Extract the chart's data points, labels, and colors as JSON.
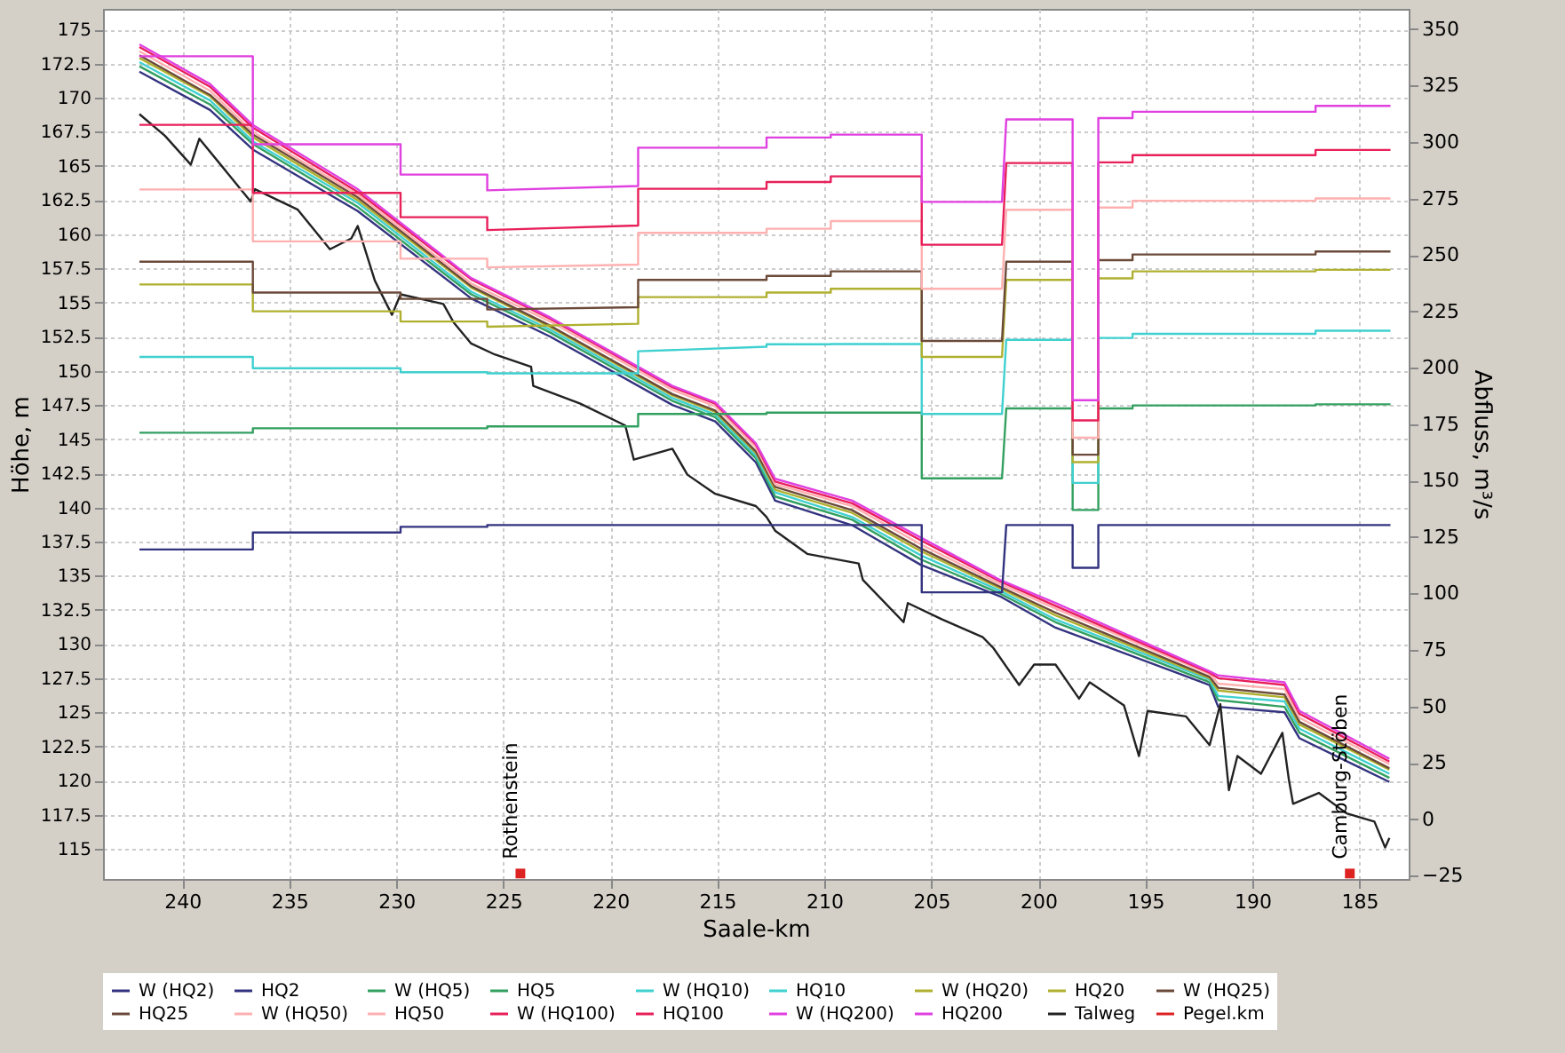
{
  "chart_data": {
    "type": "line",
    "xlabel": "Saale-km",
    "ylabel": "Höhe, m",
    "y2label": "Abfluss, m³/s",
    "xlim": [
      243.7,
      182.7
    ],
    "xticks": [
      240,
      235,
      230,
      225,
      220,
      215,
      210,
      205,
      200,
      195,
      190,
      185
    ],
    "ylim": [
      112.8,
      176.5
    ],
    "yticks": [
      115,
      117.5,
      120,
      122.5,
      125,
      127.5,
      130,
      132.5,
      135,
      137.5,
      140,
      142.5,
      145,
      147.5,
      150,
      152.5,
      155,
      157.5,
      160,
      162.5,
      165,
      167.5,
      170,
      172.5,
      175
    ],
    "y2lim": [
      -26.5,
      359
    ],
    "y2ticks": [
      -25,
      0,
      25,
      50,
      75,
      100,
      125,
      150,
      175,
      200,
      225,
      250,
      275,
      300,
      325,
      350
    ],
    "grid": true,
    "legend": "bottom",
    "annotations": [
      {
        "text": "Rothenstein",
        "x": 224.2,
        "y": 113.2
      },
      {
        "text": "Camburg-Stöben",
        "x": 185.45,
        "y": 113.2
      }
    ],
    "series": [
      {
        "name": "W (HQ2)",
        "color": "#333380",
        "x": [
          242.0,
          238.7,
          236.7,
          231.8,
          226.5,
          222.8,
          217.1,
          215.1,
          213.2,
          212.3,
          208.7,
          205.5,
          201.8,
          199.2,
          192.0,
          191.6,
          188.5,
          187.8,
          183.6
        ],
        "values": [
          171.9,
          169.1,
          166.2,
          161.7,
          155.3,
          152.5,
          147.5,
          146.3,
          143.3,
          140.5,
          138.7,
          135.8,
          133.5,
          131.2,
          127.0,
          125.4,
          125.0,
          123.1,
          119.9
        ]
      },
      {
        "name": "HQ2",
        "color": "#333380",
        "axis": "y2",
        "x": [
          242.0,
          236.7,
          236.7,
          229.8,
          229.8,
          225.75,
          225.75,
          218.7,
          218.7,
          212.7,
          212.7,
          209.7,
          209.7,
          205.45,
          205.45,
          201.7,
          201.5,
          198.4,
          198.4,
          197.2,
          197.2,
          195.6,
          195.6,
          187.05,
          187.05,
          183.55
        ],
        "values": [
          119.5,
          119.5,
          127,
          127,
          129.5,
          129.5,
          130.3,
          130.3,
          130.3,
          130.3,
          130.3,
          130.3,
          130.3,
          130.3,
          100.5,
          100.5,
          130.3,
          130.3,
          111.4,
          111.4,
          130.3,
          130.3,
          130.3,
          130.3,
          130.3,
          130.3
        ]
      },
      {
        "name": "W (HQ5)",
        "color": "#33a060",
        "x": [
          242.0,
          238.7,
          236.7,
          231.8,
          226.5,
          222.8,
          217.1,
          215.1,
          213.2,
          212.3,
          208.7,
          205.5,
          201.8,
          199.2,
          192.0,
          191.6,
          188.5,
          187.8,
          183.6
        ],
        "values": [
          172.3,
          169.5,
          166.6,
          162.0,
          155.6,
          152.8,
          147.8,
          146.6,
          143.6,
          140.8,
          139.1,
          136.2,
          133.7,
          131.6,
          127.2,
          125.9,
          125.4,
          123.5,
          120.2
        ]
      },
      {
        "name": "HQ5",
        "color": "#33a060",
        "axis": "y2",
        "x": [
          242.0,
          236.7,
          236.7,
          229.8,
          229.8,
          225.75,
          225.75,
          218.7,
          218.7,
          212.7,
          212.7,
          209.7,
          209.7,
          205.45,
          205.45,
          201.7,
          201.5,
          198.4,
          198.4,
          197.2,
          197.2,
          195.6,
          195.6,
          187.05,
          187.05,
          183.55
        ],
        "values": [
          171.2,
          171.2,
          173.2,
          173.2,
          173.2,
          173.2,
          174,
          174,
          179.5,
          179.5,
          180.1,
          180.1,
          180.1,
          180.1,
          151,
          151,
          182,
          182,
          137,
          137,
          182,
          182,
          183.3,
          183.3,
          183.8,
          183.8
        ]
      },
      {
        "name": "W (HQ10)",
        "color": "#40d0d0",
        "x": [
          242.0,
          238.7,
          236.7,
          231.8,
          226.5,
          222.8,
          217.1,
          215.1,
          213.2,
          212.3,
          208.7,
          205.5,
          201.8,
          199.2,
          192.0,
          191.6,
          188.5,
          187.8,
          183.6
        ],
        "values": [
          172.6,
          169.8,
          166.8,
          162.3,
          155.8,
          153.0,
          148.0,
          146.8,
          143.8,
          141.1,
          139.3,
          136.5,
          133.9,
          131.8,
          127.4,
          126.2,
          125.8,
          123.8,
          120.5
        ]
      },
      {
        "name": "HQ10",
        "color": "#40d0d0",
        "axis": "y2",
        "x": [
          242.0,
          236.7,
          236.7,
          229.8,
          229.8,
          225.75,
          225.75,
          218.7,
          218.7,
          212.7,
          212.7,
          209.7,
          209.7,
          205.45,
          205.45,
          201.7,
          201.5,
          198.4,
          198.4,
          197.2,
          197.2,
          195.6,
          195.6,
          187.05,
          187.05,
          183.55
        ],
        "values": [
          204.8,
          204.8,
          199.8,
          199.8,
          198,
          198,
          197.5,
          197.5,
          207.3,
          209.3,
          210.4,
          210.4,
          210.5,
          210.5,
          179.5,
          179.5,
          212.4,
          212.4,
          149,
          149,
          213.2,
          213.2,
          215,
          215,
          216.4,
          216.4
        ]
      },
      {
        "name": "W (HQ20)",
        "color": "#b0b030",
        "x": [
          242.0,
          238.7,
          236.7,
          231.8,
          226.5,
          222.8,
          217.1,
          215.1,
          213.2,
          212.3,
          208.7,
          205.5,
          201.8,
          199.2,
          192.0,
          191.6,
          188.5,
          187.8,
          183.6
        ],
        "values": [
          172.9,
          170.1,
          167.1,
          162.5,
          156.1,
          153.2,
          148.2,
          147.0,
          144.0,
          141.3,
          139.6,
          136.8,
          134.1,
          132.1,
          127.5,
          126.6,
          126.1,
          124.1,
          120.8
        ]
      },
      {
        "name": "HQ20",
        "color": "#b0b030",
        "axis": "y2",
        "x": [
          242.0,
          236.7,
          236.7,
          229.8,
          229.8,
          225.75,
          225.75,
          218.7,
          218.7,
          212.7,
          212.7,
          209.7,
          209.7,
          205.45,
          205.45,
          201.7,
          201.5,
          198.4,
          198.4,
          197.2,
          197.2,
          195.6,
          195.6,
          187.05,
          187.05,
          183.55
        ],
        "values": [
          236.9,
          236.9,
          225,
          225,
          220.5,
          220.5,
          218.2,
          219.5,
          231.3,
          231.3,
          233.3,
          233.3,
          235,
          235,
          204.8,
          204.8,
          238.9,
          238.9,
          158.2,
          158.2,
          239.6,
          239.6,
          242.7,
          242.7,
          243.4,
          243.4
        ]
      },
      {
        "name": "W (HQ25)",
        "color": "#6b4a3a",
        "x": [
          242.0,
          238.7,
          236.7,
          231.8,
          226.5,
          222.8,
          217.1,
          215.1,
          213.2,
          212.3,
          208.7,
          205.5,
          201.8,
          199.2,
          192.0,
          191.6,
          188.5,
          187.8,
          183.6
        ],
        "values": [
          173.1,
          170.2,
          167.3,
          162.7,
          156.2,
          153.3,
          148.3,
          147.1,
          144.1,
          141.5,
          139.8,
          137.0,
          134.2,
          132.3,
          127.6,
          126.8,
          126.3,
          124.3,
          120.9
        ]
      },
      {
        "name": "HQ25",
        "color": "#6b4a3a",
        "axis": "y2",
        "x": [
          242.0,
          236.7,
          236.7,
          229.8,
          229.8,
          225.75,
          225.75,
          218.7,
          218.7,
          212.7,
          212.7,
          209.7,
          209.7,
          205.45,
          205.45,
          201.7,
          201.5,
          198.4,
          198.4,
          197.2,
          197.2,
          195.6,
          195.6,
          187.05,
          187.05,
          183.55
        ],
        "values": [
          247,
          247,
          233.3,
          233.3,
          230.5,
          230.5,
          225.8,
          226.8,
          238.9,
          238.9,
          240.7,
          240.7,
          242.7,
          242.7,
          211.9,
          211.9,
          247,
          247,
          161.5,
          161.5,
          247.7,
          247.7,
          250.2,
          250.2,
          251.5,
          251.5
        ]
      },
      {
        "name": "W (HQ50)",
        "color": "#ffb0b0",
        "x": [
          242.0,
          238.7,
          236.7,
          231.8,
          226.5,
          222.8,
          217.1,
          215.1,
          213.2,
          212.3,
          208.7,
          205.5,
          201.8,
          199.2,
          192.0,
          191.6,
          188.5,
          187.8,
          183.6
        ],
        "values": [
          173.4,
          170.5,
          167.5,
          162.9,
          156.4,
          153.6,
          148.6,
          147.4,
          144.4,
          141.7,
          140.1,
          137.3,
          134.4,
          132.6,
          127.8,
          127.1,
          126.7,
          124.6,
          121.2
        ]
      },
      {
        "name": "HQ50",
        "color": "#ffb0b0",
        "axis": "y2",
        "x": [
          242.0,
          236.7,
          236.7,
          229.8,
          229.8,
          225.75,
          225.75,
          218.7,
          218.7,
          212.7,
          212.7,
          209.7,
          209.7,
          205.45,
          205.45,
          201.7,
          201.5,
          198.4,
          198.4,
          197.2,
          197.2,
          195.6,
          195.6,
          187.05,
          187.05,
          183.55
        ],
        "values": [
          279,
          279,
          256,
          256,
          248.3,
          248.3,
          244.5,
          245.7,
          259.8,
          259.8,
          261.6,
          261.6,
          265,
          265,
          235,
          235,
          270,
          270,
          169,
          169,
          271,
          271,
          274,
          274,
          275,
          275
        ]
      },
      {
        "name": "W (HQ100)",
        "color": "#e8205a",
        "x": [
          242.0,
          238.7,
          236.7,
          231.8,
          226.5,
          222.8,
          217.1,
          215.1,
          213.2,
          212.3,
          208.7,
          205.5,
          201.8,
          199.2,
          192.0,
          191.6,
          188.5,
          187.8,
          183.6
        ],
        "values": [
          173.7,
          170.8,
          167.8,
          163.1,
          156.7,
          153.8,
          148.8,
          147.6,
          144.6,
          141.9,
          140.3,
          137.6,
          134.6,
          132.8,
          127.9,
          127.5,
          127.0,
          124.9,
          121.4
        ]
      },
      {
        "name": "HQ100",
        "color": "#e8205a",
        "axis": "y2",
        "x": [
          242.0,
          236.7,
          236.7,
          229.8,
          229.8,
          225.75,
          225.75,
          218.7,
          218.7,
          212.7,
          212.7,
          209.7,
          209.7,
          205.45,
          205.45,
          201.7,
          201.5,
          198.4,
          198.4,
          197.2,
          197.2,
          195.6,
          195.6,
          187.05,
          187.05,
          183.55
        ],
        "values": [
          307.6,
          307.6,
          277.5,
          277.5,
          266.7,
          266.7,
          261,
          263,
          279.3,
          279.3,
          282.3,
          282.3,
          284.8,
          284.8,
          254.5,
          254.5,
          290.7,
          290.7,
          176.7,
          176.7,
          291,
          291,
          294.2,
          294.2,
          296.5,
          296.5
        ]
      },
      {
        "name": "W (HQ200)",
        "color": "#e040e0",
        "x": [
          242.0,
          238.7,
          236.7,
          231.8,
          226.5,
          222.8,
          217.1,
          215.1,
          213.2,
          212.3,
          208.7,
          205.5,
          201.8,
          199.2,
          192.0,
          191.6,
          188.5,
          187.8,
          183.6
        ],
        "values": [
          173.9,
          171.0,
          168.0,
          163.3,
          156.8,
          153.9,
          148.9,
          147.7,
          144.7,
          142.1,
          140.5,
          137.8,
          134.7,
          133.0,
          128.0,
          127.7,
          127.2,
          125.1,
          121.6
        ]
      },
      {
        "name": "HQ200",
        "color": "#e040e0",
        "axis": "y2",
        "x": [
          242.0,
          236.7,
          236.7,
          229.8,
          229.8,
          225.75,
          225.75,
          218.7,
          218.7,
          212.7,
          212.7,
          209.7,
          209.7,
          205.45,
          205.45,
          201.7,
          201.5,
          198.4,
          198.4,
          197.2,
          197.2,
          195.6,
          195.6,
          187.05,
          187.05,
          183.55
        ],
        "values": [
          338,
          338,
          299,
          299,
          285.6,
          285.6,
          278.6,
          280.5,
          297.5,
          297.5,
          302,
          302,
          303.3,
          303.3,
          273.5,
          273.5,
          310,
          310,
          185.6,
          185.6,
          310.6,
          310.6,
          313.4,
          313.4,
          316,
          316
        ]
      },
      {
        "name": "Talweg",
        "color": "#222222",
        "x": [
          242.0,
          240.8,
          239.6,
          239.2,
          236.8,
          236.6,
          234.6,
          233.1,
          232.1,
          231.8,
          231.0,
          230.2,
          229.8,
          227.8,
          227.3,
          226.5,
          225.4,
          223.7,
          223.6,
          221.4,
          219.3,
          218.9,
          217.1,
          216.4,
          215.1,
          213.2,
          212.7,
          212.3,
          210.8,
          208.4,
          208.2,
          206.3,
          206.1,
          204.5,
          202.6,
          202.1,
          200.9,
          200.2,
          199.2,
          198.1,
          197.6,
          196.0,
          195.3,
          194.9,
          193.1,
          192.0,
          191.5,
          191.1,
          190.7,
          189.6,
          188.6,
          188.3,
          188.1,
          186.9,
          185.6,
          184.3,
          183.8,
          183.6
        ],
        "values": [
          168.8,
          167.2,
          165.1,
          167.0,
          162.4,
          163.3,
          161.8,
          158.9,
          159.7,
          160.6,
          156.6,
          154.1,
          155.6,
          154.9,
          153.5,
          152.0,
          151.2,
          150.3,
          148.9,
          147.6,
          146.0,
          143.5,
          144.3,
          142.4,
          141.0,
          140.1,
          139.3,
          138.3,
          136.6,
          135.9,
          134.7,
          131.6,
          133.0,
          131.8,
          130.5,
          129.7,
          127.0,
          128.5,
          128.5,
          126.0,
          127.2,
          125.5,
          121.8,
          125.1,
          124.7,
          122.6,
          125.6,
          119.3,
          121.8,
          120.5,
          123.5,
          120.1,
          118.3,
          119.1,
          117.6,
          117.0,
          115.1,
          115.8
        ]
      },
      {
        "name": "Pegel.km",
        "color": "#dd2222",
        "type": "scatter",
        "marker": "square",
        "x": [
          224.2,
          185.45
        ],
        "values": [
          113.2,
          113.2
        ]
      }
    ]
  }
}
